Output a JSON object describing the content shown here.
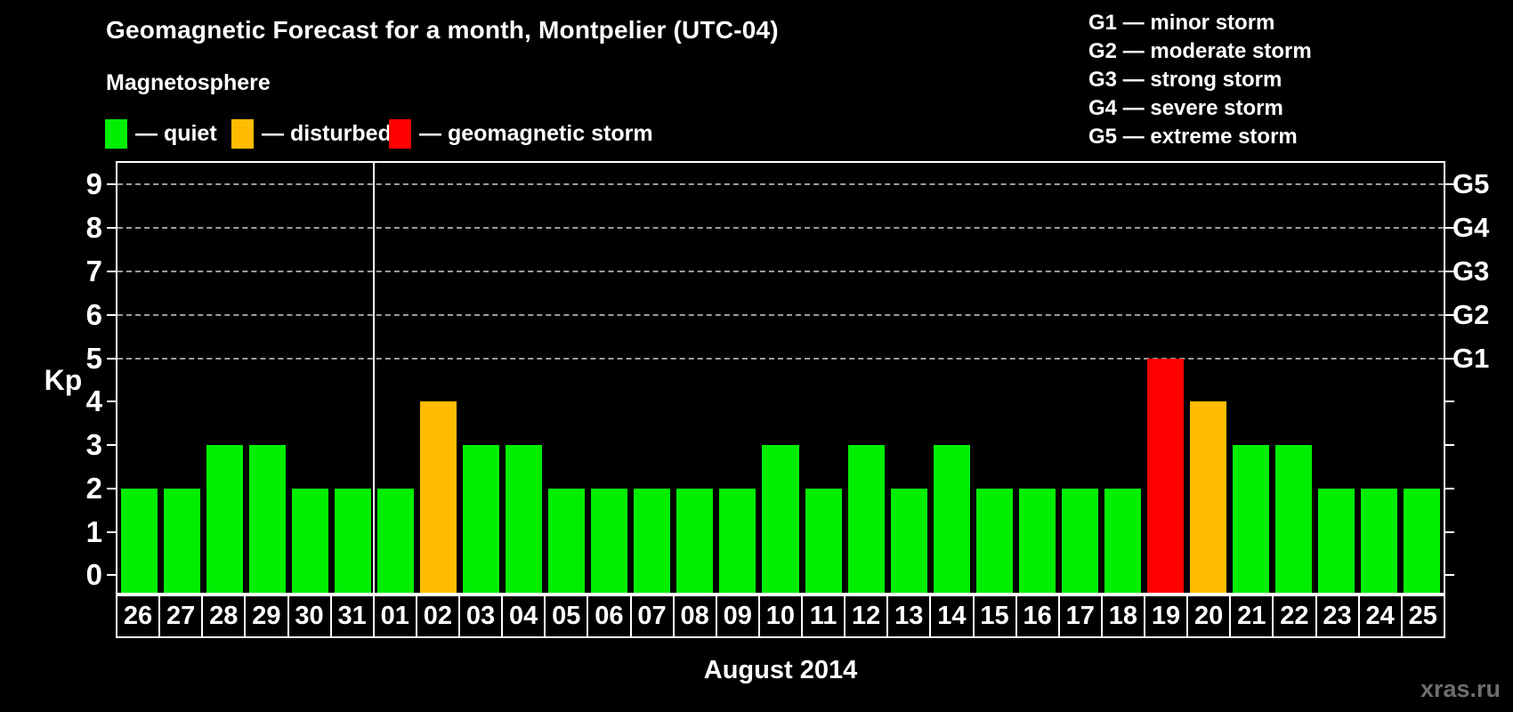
{
  "header": {
    "title": "Geomagnetic Forecast for a month, Montpelier (UTC-04)",
    "subtitle": "Magnetosphere"
  },
  "legend": {
    "items": [
      {
        "key": "quiet",
        "label": "— quiet",
        "color": "#00ee00"
      },
      {
        "key": "disturbed",
        "label": "— disturbed",
        "color": "#ffbc00"
      },
      {
        "key": "geomagnetic-storm",
        "label": "— geomagnetic storm",
        "color": "#ff0000"
      }
    ]
  },
  "g_scale_legend": {
    "lines": [
      "G1 — minor storm",
      "G2 — moderate storm",
      "G3 — strong storm",
      "G4 — severe storm",
      "G5 — extreme storm"
    ]
  },
  "chart_data": {
    "type": "bar",
    "title": "Geomagnetic Forecast for a month, Montpelier (UTC-04)",
    "ylabel": "Kp",
    "xlabel": "August 2014",
    "ylim": [
      -0.4,
      9.5
    ],
    "yticks": [
      0,
      1,
      2,
      3,
      4,
      5,
      6,
      7,
      8,
      9
    ],
    "gridlines": [
      5,
      6,
      7,
      8,
      9
    ],
    "grid_style": "dashed",
    "right_axis_labels": [
      {
        "label": "G1",
        "value": 5
      },
      {
        "label": "G2",
        "value": 6
      },
      {
        "label": "G3",
        "value": 7
      },
      {
        "label": "G4",
        "value": 8
      },
      {
        "label": "G5",
        "value": 9
      }
    ],
    "month_separator_after_index": 5,
    "categories": [
      "26",
      "27",
      "28",
      "29",
      "30",
      "31",
      "01",
      "02",
      "03",
      "04",
      "05",
      "06",
      "07",
      "08",
      "09",
      "10",
      "11",
      "12",
      "13",
      "14",
      "15",
      "16",
      "17",
      "18",
      "19",
      "20",
      "21",
      "22",
      "23",
      "24",
      "25"
    ],
    "values": [
      2,
      2,
      3,
      3,
      2,
      2,
      2,
      4,
      3,
      3,
      2,
      2,
      2,
      2,
      2,
      3,
      2,
      3,
      2,
      3,
      2,
      2,
      2,
      2,
      5,
      4,
      3,
      3,
      2,
      2,
      2
    ],
    "statuses": [
      "quiet",
      "quiet",
      "quiet",
      "quiet",
      "quiet",
      "quiet",
      "quiet",
      "disturbed",
      "quiet",
      "quiet",
      "quiet",
      "quiet",
      "quiet",
      "quiet",
      "quiet",
      "quiet",
      "quiet",
      "quiet",
      "quiet",
      "quiet",
      "quiet",
      "quiet",
      "quiet",
      "quiet",
      "geomagnetic-storm",
      "disturbed",
      "quiet",
      "quiet",
      "quiet",
      "quiet",
      "quiet"
    ],
    "color_rule": {
      "quiet_max": 3,
      "disturbed_max": 4,
      "storm_min": 5
    },
    "legend_position": "top-left"
  },
  "watermark": "xras.ru",
  "colors": {
    "background": "#000000",
    "axis": "#ffffff",
    "grid": "#9c9c9c",
    "quiet": "#00ee00",
    "disturbed": "#ffbc00",
    "storm": "#ff0000",
    "watermark": "#6e6e6e"
  }
}
